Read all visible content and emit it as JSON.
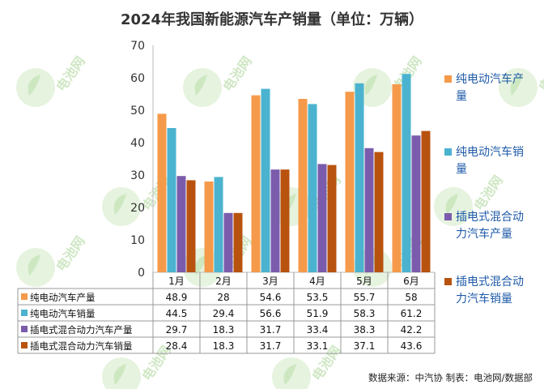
{
  "chart_data": {
    "type": "bar",
    "title": "2024年我国新能源汽车产销量（单位：万辆）",
    "categories": [
      "1月",
      "2月",
      "3月",
      "4月",
      "5月",
      "6月"
    ],
    "series": [
      {
        "name": "纯电动汽车产量",
        "values": [
          48.9,
          28,
          54.6,
          53.5,
          55.7,
          58
        ],
        "color": "#f59a4a"
      },
      {
        "name": "纯电动汽车销量",
        "values": [
          44.5,
          29.4,
          56.6,
          51.9,
          58.3,
          61.2
        ],
        "color": "#4bb3cf"
      },
      {
        "name": "插电式混合动力汽车产量",
        "values": [
          29.7,
          18.3,
          31.7,
          33.4,
          38.3,
          42.2
        ],
        "color": "#7b5cac"
      },
      {
        "name": "插电式混合动力汽车销量",
        "values": [
          28.4,
          18.3,
          31.7,
          33.1,
          37.1,
          43.6
        ],
        "color": "#b8530f"
      }
    ],
    "table_values": [
      [
        "48.9",
        "28",
        "54.6",
        "53.5",
        "55.7",
        "58"
      ],
      [
        "44.5",
        "29.4",
        "56.6",
        "51.9",
        "58.3",
        "61.2"
      ],
      [
        "29.7",
        "18.3",
        "31.7",
        "33.4",
        "38.3",
        "42.2"
      ],
      [
        "28.4",
        "18.3",
        "31.7",
        "33.1",
        "37.1",
        "43.6"
      ]
    ],
    "ylim": [
      0,
      70
    ],
    "yticks": [
      0,
      10,
      20,
      30,
      40,
      50,
      60,
      70
    ],
    "legend_position": "right",
    "data_table": true
  },
  "legend_lines": [
    [
      "纯电动汽车产",
      "量"
    ],
    [
      "纯电动汽车销",
      "量"
    ],
    [
      "插电式混合动",
      "力汽车产量"
    ],
    [
      "插电式混合动",
      "力汽车销量"
    ]
  ],
  "source": "数据来源：中汽协  制表：电池网/数据部",
  "watermark": "电池网"
}
